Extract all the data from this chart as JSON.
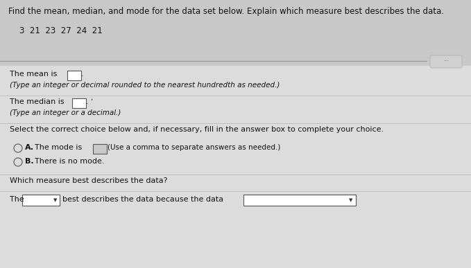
{
  "background_color": "#c8c8c8",
  "content_color": "#e8e8e8",
  "title_text": "Find the mean, median, and mode for the data set below. Explain which measure best describes the data.",
  "data_set": "3  21  23  27  24  21",
  "mean_label": "The mean is",
  "mean_hint": "(Type an integer or decimal rounded to the nearest hundredth as needed.)",
  "median_label": "The median is",
  "median_hint": "(Type an integer or a decimal.)",
  "select_text": "Select the correct choice below and, if necessary, fill in the answer box to complete your choice.",
  "option_a_label": "A.",
  "option_a_text": "The mode is",
  "option_a_suffix": "(Use a comma to separate answers as needed.)",
  "option_b_label": "B.",
  "option_b_text": "There is no mode.",
  "which_text": "Which measure best describes the data?",
  "the_text": "The",
  "best_text": "best describes the data because the data",
  "font_color": "#111111",
  "font_size_title": 8.5,
  "font_size_body": 8.0,
  "font_size_hint": 7.5,
  "box_color": "#ffffff",
  "separator_color": "#999999",
  "dots_color": "#888888"
}
